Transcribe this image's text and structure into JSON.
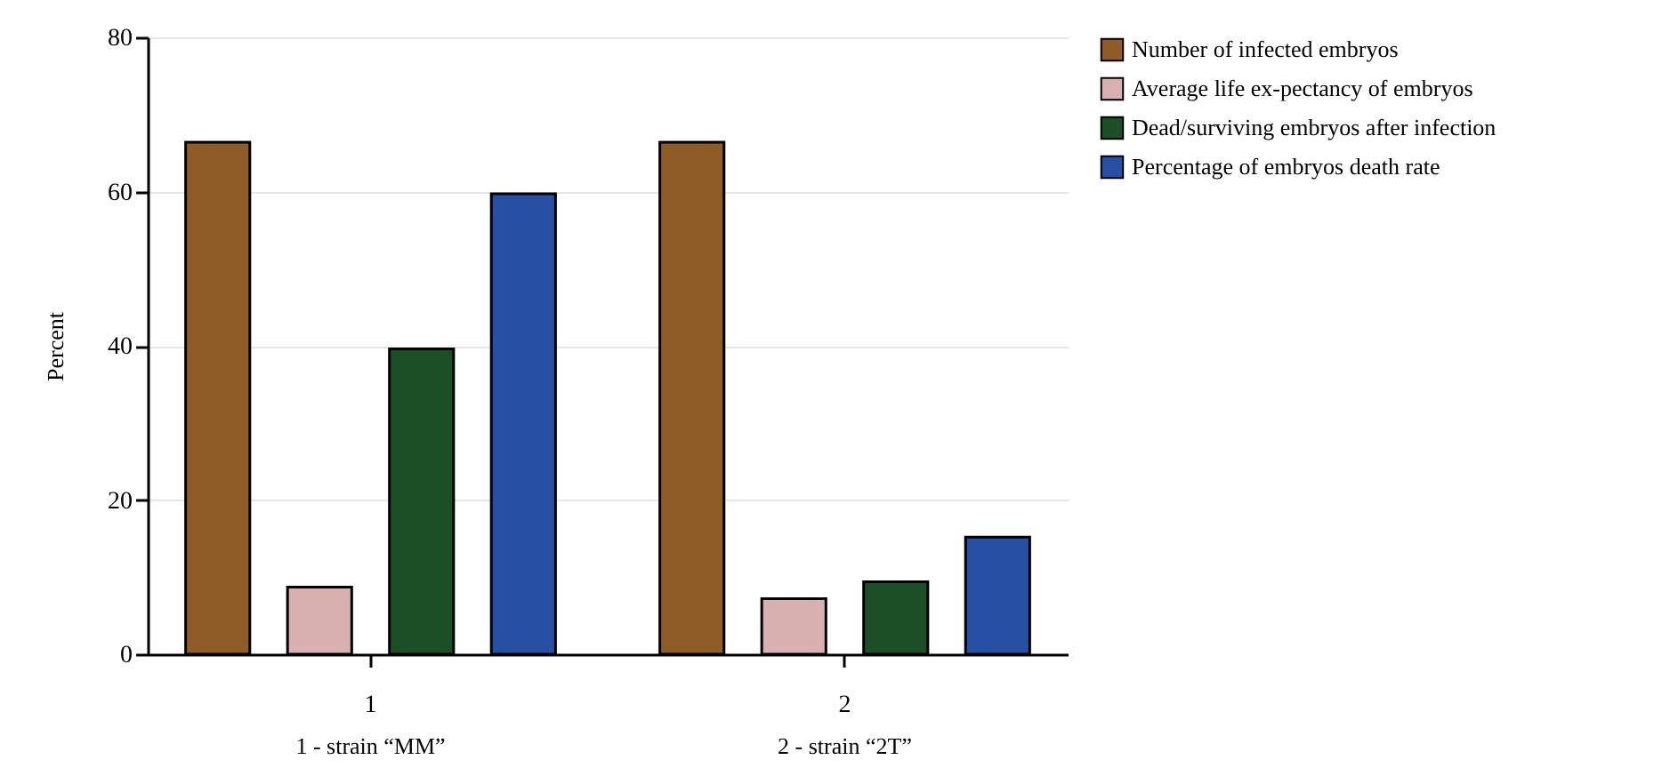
{
  "chart_data": {
    "type": "bar",
    "ylabel": "Percent",
    "categories": [
      "1",
      "2"
    ],
    "series": [
      {
        "name": "Number of infected embryos",
        "color": "#8f5b26",
        "values": [
          66.4,
          66.4
        ]
      },
      {
        "name": "Average life ex-pectancy of embryos",
        "color": "#d8b0b0",
        "values": [
          8.7,
          7.2
        ]
      },
      {
        "name": "Dead/surviving embryos after infection",
        "color": "#1d4f27",
        "values": [
          39.6,
          9.4
        ]
      },
      {
        "name": "Percentage of embryos death rate",
        "color": "#2750a4",
        "values": [
          59.7,
          15.2
        ]
      }
    ],
    "ylim": [
      0,
      80
    ],
    "yticks": [
      0,
      20,
      40,
      60,
      80
    ],
    "grid": "y",
    "legend": "right",
    "annotations": [
      "1 - strain “MM”",
      "2 - strain “2T”"
    ]
  }
}
